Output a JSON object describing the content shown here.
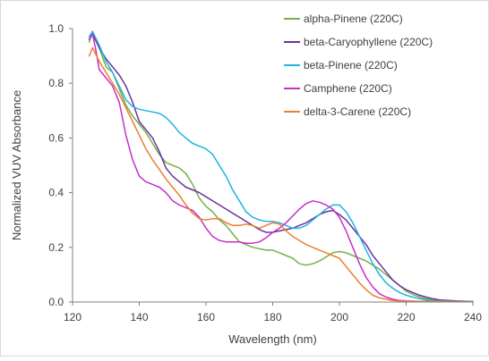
{
  "chart_data": {
    "type": "line",
    "xlabel": "Wavelength (nm)",
    "ylabel": "Normalized VUV Absorbance",
    "xlim": [
      120,
      240
    ],
    "ylim": [
      0,
      1.0
    ],
    "x_ticks": [
      "120",
      "140",
      "160",
      "180",
      "200",
      "220",
      "240"
    ],
    "y_ticks": [
      "0.0",
      "0.2",
      "0.4",
      "0.6",
      "0.8",
      "1.0"
    ],
    "grid": false,
    "legend_position": "top-right",
    "series": [
      {
        "name": "alpha-Pinene (220C)",
        "color": "#70b443",
        "points": [
          [
            125,
            0.95
          ],
          [
            126,
            0.99
          ],
          [
            128,
            0.93
          ],
          [
            130,
            0.86
          ],
          [
            132,
            0.84
          ],
          [
            134,
            0.78
          ],
          [
            136,
            0.72
          ],
          [
            138,
            0.68
          ],
          [
            140,
            0.65
          ],
          [
            142,
            0.62
          ],
          [
            144,
            0.58
          ],
          [
            146,
            0.54
          ],
          [
            148,
            0.51
          ],
          [
            150,
            0.5
          ],
          [
            152,
            0.49
          ],
          [
            154,
            0.47
          ],
          [
            156,
            0.43
          ],
          [
            158,
            0.38
          ],
          [
            160,
            0.35
          ],
          [
            162,
            0.33
          ],
          [
            164,
            0.3
          ],
          [
            166,
            0.28
          ],
          [
            168,
            0.25
          ],
          [
            170,
            0.22
          ],
          [
            172,
            0.21
          ],
          [
            174,
            0.2
          ],
          [
            176,
            0.195
          ],
          [
            178,
            0.19
          ],
          [
            180,
            0.19
          ],
          [
            182,
            0.18
          ],
          [
            184,
            0.17
          ],
          [
            186,
            0.16
          ],
          [
            188,
            0.14
          ],
          [
            190,
            0.135
          ],
          [
            192,
            0.14
          ],
          [
            194,
            0.15
          ],
          [
            196,
            0.165
          ],
          [
            198,
            0.18
          ],
          [
            200,
            0.185
          ],
          [
            202,
            0.18
          ],
          [
            204,
            0.17
          ],
          [
            206,
            0.16
          ],
          [
            208,
            0.15
          ],
          [
            210,
            0.135
          ],
          [
            212,
            0.12
          ],
          [
            214,
            0.1
          ],
          [
            216,
            0.08
          ],
          [
            218,
            0.06
          ],
          [
            220,
            0.04
          ],
          [
            222,
            0.028
          ],
          [
            224,
            0.018
          ],
          [
            226,
            0.012
          ],
          [
            228,
            0.008
          ],
          [
            230,
            0.005
          ],
          [
            235,
            0.003
          ],
          [
            240,
            0.002
          ]
        ]
      },
      {
        "name": "beta-Caryophyllene (220C)",
        "color": "#7030a0",
        "points": [
          [
            125,
            0.96
          ],
          [
            126,
            0.98
          ],
          [
            128,
            0.93
          ],
          [
            130,
            0.89
          ],
          [
            132,
            0.86
          ],
          [
            134,
            0.83
          ],
          [
            136,
            0.79
          ],
          [
            138,
            0.73
          ],
          [
            140,
            0.66
          ],
          [
            142,
            0.63
          ],
          [
            144,
            0.6
          ],
          [
            146,
            0.55
          ],
          [
            148,
            0.49
          ],
          [
            150,
            0.46
          ],
          [
            152,
            0.44
          ],
          [
            154,
            0.42
          ],
          [
            156,
            0.41
          ],
          [
            158,
            0.4
          ],
          [
            160,
            0.385
          ],
          [
            162,
            0.37
          ],
          [
            164,
            0.355
          ],
          [
            166,
            0.34
          ],
          [
            168,
            0.325
          ],
          [
            170,
            0.31
          ],
          [
            172,
            0.295
          ],
          [
            174,
            0.28
          ],
          [
            176,
            0.265
          ],
          [
            178,
            0.255
          ],
          [
            180,
            0.255
          ],
          [
            182,
            0.26
          ],
          [
            184,
            0.265
          ],
          [
            186,
            0.27
          ],
          [
            188,
            0.28
          ],
          [
            190,
            0.29
          ],
          [
            192,
            0.305
          ],
          [
            194,
            0.32
          ],
          [
            196,
            0.33
          ],
          [
            198,
            0.335
          ],
          [
            200,
            0.32
          ],
          [
            202,
            0.3
          ],
          [
            204,
            0.27
          ],
          [
            206,
            0.24
          ],
          [
            208,
            0.21
          ],
          [
            210,
            0.17
          ],
          [
            212,
            0.14
          ],
          [
            214,
            0.11
          ],
          [
            216,
            0.08
          ],
          [
            218,
            0.06
          ],
          [
            220,
            0.045
          ],
          [
            222,
            0.035
          ],
          [
            224,
            0.025
          ],
          [
            226,
            0.018
          ],
          [
            228,
            0.012
          ],
          [
            230,
            0.008
          ],
          [
            235,
            0.004
          ],
          [
            240,
            0.002
          ]
        ]
      },
      {
        "name": "beta-Pinene (220C)",
        "color": "#1fb4e0",
        "points": [
          [
            125,
            0.97
          ],
          [
            126,
            0.99
          ],
          [
            128,
            0.94
          ],
          [
            130,
            0.88
          ],
          [
            132,
            0.84
          ],
          [
            134,
            0.79
          ],
          [
            136,
            0.74
          ],
          [
            138,
            0.715
          ],
          [
            140,
            0.705
          ],
          [
            142,
            0.7
          ],
          [
            144,
            0.695
          ],
          [
            146,
            0.69
          ],
          [
            148,
            0.675
          ],
          [
            150,
            0.65
          ],
          [
            152,
            0.62
          ],
          [
            154,
            0.6
          ],
          [
            156,
            0.58
          ],
          [
            158,
            0.57
          ],
          [
            160,
            0.56
          ],
          [
            162,
            0.54
          ],
          [
            164,
            0.5
          ],
          [
            166,
            0.46
          ],
          [
            168,
            0.41
          ],
          [
            170,
            0.37
          ],
          [
            172,
            0.33
          ],
          [
            174,
            0.31
          ],
          [
            176,
            0.3
          ],
          [
            178,
            0.295
          ],
          [
            180,
            0.295
          ],
          [
            182,
            0.29
          ],
          [
            184,
            0.28
          ],
          [
            186,
            0.27
          ],
          [
            188,
            0.27
          ],
          [
            190,
            0.28
          ],
          [
            192,
            0.3
          ],
          [
            194,
            0.32
          ],
          [
            196,
            0.34
          ],
          [
            198,
            0.355
          ],
          [
            200,
            0.355
          ],
          [
            202,
            0.33
          ],
          [
            204,
            0.29
          ],
          [
            206,
            0.24
          ],
          [
            208,
            0.19
          ],
          [
            210,
            0.14
          ],
          [
            212,
            0.1
          ],
          [
            214,
            0.07
          ],
          [
            216,
            0.05
          ],
          [
            218,
            0.035
          ],
          [
            220,
            0.025
          ],
          [
            222,
            0.018
          ],
          [
            224,
            0.012
          ],
          [
            226,
            0.008
          ],
          [
            228,
            0.005
          ],
          [
            230,
            0.004
          ],
          [
            235,
            0.002
          ],
          [
            240,
            0.002
          ]
        ]
      },
      {
        "name": "Camphene (220C)",
        "color": "#c62fc8",
        "points": [
          [
            125,
            0.96
          ],
          [
            126,
            0.98
          ],
          [
            127,
            0.92
          ],
          [
            128,
            0.85
          ],
          [
            130,
            0.82
          ],
          [
            132,
            0.79
          ],
          [
            134,
            0.73
          ],
          [
            136,
            0.61
          ],
          [
            138,
            0.52
          ],
          [
            140,
            0.46
          ],
          [
            142,
            0.44
          ],
          [
            144,
            0.43
          ],
          [
            146,
            0.42
          ],
          [
            148,
            0.4
          ],
          [
            150,
            0.37
          ],
          [
            152,
            0.355
          ],
          [
            154,
            0.345
          ],
          [
            156,
            0.335
          ],
          [
            158,
            0.31
          ],
          [
            160,
            0.27
          ],
          [
            162,
            0.24
          ],
          [
            164,
            0.225
          ],
          [
            166,
            0.22
          ],
          [
            168,
            0.22
          ],
          [
            170,
            0.22
          ],
          [
            172,
            0.215
          ],
          [
            174,
            0.215
          ],
          [
            176,
            0.22
          ],
          [
            178,
            0.235
          ],
          [
            180,
            0.255
          ],
          [
            182,
            0.27
          ],
          [
            184,
            0.29
          ],
          [
            186,
            0.315
          ],
          [
            188,
            0.34
          ],
          [
            190,
            0.36
          ],
          [
            192,
            0.37
          ],
          [
            194,
            0.365
          ],
          [
            196,
            0.355
          ],
          [
            198,
            0.34
          ],
          [
            200,
            0.31
          ],
          [
            202,
            0.26
          ],
          [
            204,
            0.2
          ],
          [
            206,
            0.14
          ],
          [
            208,
            0.09
          ],
          [
            210,
            0.055
          ],
          [
            212,
            0.03
          ],
          [
            214,
            0.018
          ],
          [
            216,
            0.01
          ],
          [
            218,
            0.006
          ],
          [
            220,
            0.004
          ],
          [
            225,
            0.002
          ],
          [
            230,
            0.001
          ],
          [
            240,
            0.001
          ]
        ]
      },
      {
        "name": "delta-3-Carene (220C)",
        "color": "#ed7d31",
        "points": [
          [
            125,
            0.9
          ],
          [
            126,
            0.93
          ],
          [
            128,
            0.88
          ],
          [
            130,
            0.84
          ],
          [
            132,
            0.8
          ],
          [
            134,
            0.76
          ],
          [
            136,
            0.71
          ],
          [
            138,
            0.66
          ],
          [
            140,
            0.61
          ],
          [
            142,
            0.56
          ],
          [
            144,
            0.52
          ],
          [
            146,
            0.485
          ],
          [
            148,
            0.45
          ],
          [
            150,
            0.42
          ],
          [
            152,
            0.39
          ],
          [
            154,
            0.355
          ],
          [
            156,
            0.325
          ],
          [
            158,
            0.305
          ],
          [
            160,
            0.3
          ],
          [
            162,
            0.305
          ],
          [
            164,
            0.305
          ],
          [
            166,
            0.29
          ],
          [
            168,
            0.28
          ],
          [
            170,
            0.28
          ],
          [
            172,
            0.285
          ],
          [
            174,
            0.28
          ],
          [
            176,
            0.27
          ],
          [
            178,
            0.28
          ],
          [
            180,
            0.29
          ],
          [
            182,
            0.285
          ],
          [
            184,
            0.26
          ],
          [
            186,
            0.24
          ],
          [
            188,
            0.225
          ],
          [
            190,
            0.21
          ],
          [
            192,
            0.2
          ],
          [
            194,
            0.19
          ],
          [
            196,
            0.18
          ],
          [
            198,
            0.17
          ],
          [
            200,
            0.16
          ],
          [
            202,
            0.13
          ],
          [
            204,
            0.1
          ],
          [
            206,
            0.07
          ],
          [
            208,
            0.045
          ],
          [
            210,
            0.025
          ],
          [
            212,
            0.015
          ],
          [
            214,
            0.01
          ],
          [
            216,
            0.006
          ],
          [
            218,
            0.004
          ],
          [
            220,
            0.003
          ],
          [
            230,
            0.002
          ],
          [
            240,
            0.001
          ]
        ]
      }
    ]
  }
}
